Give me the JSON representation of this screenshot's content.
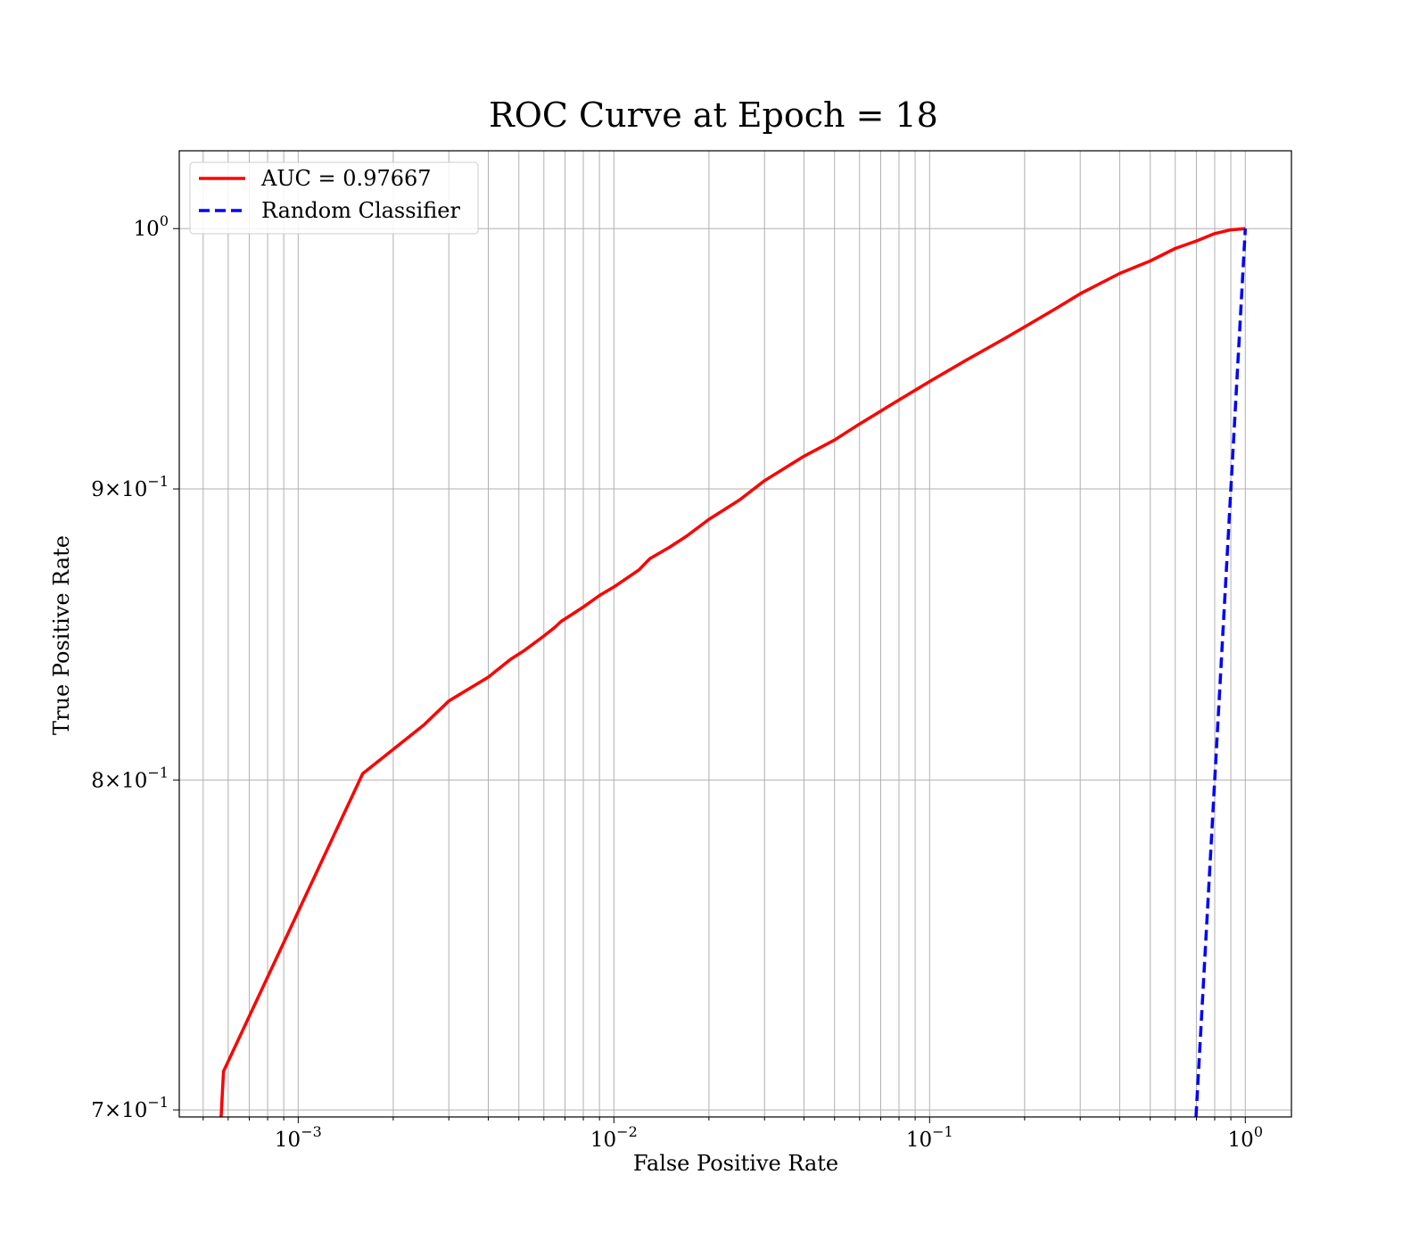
{
  "chart_data": {
    "type": "line",
    "title": "ROC Curve at Epoch = 18",
    "xlabel": "False Positive Rate",
    "ylabel": "True Positive Rate",
    "xscale": "log",
    "yscale": "log",
    "xlim": [
      0.00042,
      1.4
    ],
    "ylim": [
      0.698,
      1.032
    ],
    "grid": true,
    "grid_which": "both",
    "legend_position": "upper-left",
    "x_ticks": [
      {
        "value": 0.001,
        "base": "10",
        "exp": "−3"
      },
      {
        "value": 0.01,
        "base": "10",
        "exp": "−2"
      },
      {
        "value": 0.1,
        "base": "10",
        "exp": "−1"
      },
      {
        "value": 1,
        "base": "10",
        "exp": "0"
      }
    ],
    "y_ticks": [
      {
        "value": 0.7,
        "mant": "7",
        "base": "10",
        "exp": "−1"
      },
      {
        "value": 0.8,
        "mant": "8",
        "base": "10",
        "exp": "−1"
      },
      {
        "value": 0.9,
        "mant": "9",
        "base": "10",
        "exp": "−1"
      },
      {
        "value": 1.0,
        "mant": "",
        "base": "10",
        "exp": "0"
      }
    ],
    "series": [
      {
        "name": "AUC = 0.97667",
        "color": "#ff0000",
        "style": "solid",
        "x": [
          0.00057,
          0.00058,
          0.0016,
          0.0025,
          0.003,
          0.004,
          0.0047,
          0.0052,
          0.006,
          0.0065,
          0.0068,
          0.0075,
          0.008,
          0.009,
          0.01,
          0.012,
          0.013,
          0.015,
          0.017,
          0.02,
          0.025,
          0.03,
          0.04,
          0.05,
          0.06,
          0.08,
          0.1,
          0.13,
          0.17,
          0.2,
          0.25,
          0.3,
          0.4,
          0.5,
          0.6,
          0.7,
          0.8,
          0.9,
          1.0
        ],
        "y": [
          0.698,
          0.711,
          0.802,
          0.818,
          0.826,
          0.834,
          0.84,
          0.843,
          0.848,
          0.851,
          0.853,
          0.856,
          0.858,
          0.862,
          0.865,
          0.871,
          0.875,
          0.879,
          0.883,
          0.889,
          0.896,
          0.903,
          0.912,
          0.918,
          0.924,
          0.933,
          0.94,
          0.948,
          0.956,
          0.961,
          0.968,
          0.974,
          0.982,
          0.987,
          0.992,
          0.995,
          0.998,
          0.9995,
          1.0
        ]
      },
      {
        "name": "Random Classifier",
        "color": "#0000ff",
        "style": "dashed",
        "x": [
          0.698,
          1.0
        ],
        "y": [
          0.698,
          1.0
        ]
      }
    ]
  }
}
